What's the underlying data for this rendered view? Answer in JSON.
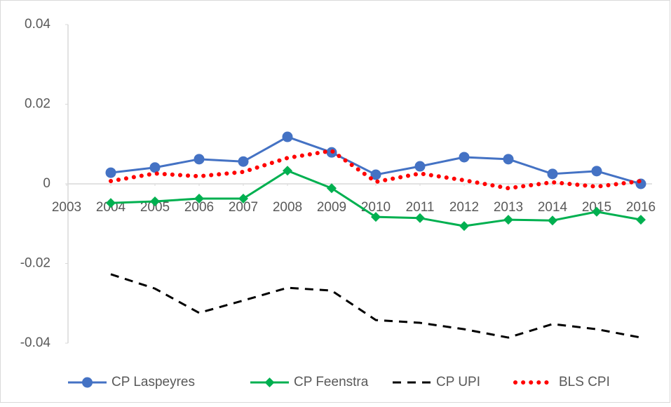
{
  "chart_data": {
    "type": "line",
    "x": [
      2004,
      2005,
      2006,
      2007,
      2008,
      2009,
      2010,
      2011,
      2012,
      2013,
      2014,
      2015,
      2016
    ],
    "xlim": [
      2003,
      2016
    ],
    "xticks": [
      2003,
      2004,
      2005,
      2006,
      2007,
      2008,
      2009,
      2010,
      2011,
      2012,
      2013,
      2014,
      2015,
      2016
    ],
    "ylim": [
      -0.04,
      0.04
    ],
    "yticks": [
      0.04,
      0.02,
      0,
      -0.02,
      -0.04
    ],
    "grid": false,
    "legend": "bottom",
    "series": [
      {
        "name": "CP Laspeyres",
        "color": "#4472c4",
        "marker": "circle",
        "dash": "solid",
        "values": [
          0.0028,
          0.0041,
          0.0062,
          0.0056,
          0.0118,
          0.0079,
          0.0023,
          0.0044,
          0.0067,
          0.0062,
          0.0025,
          0.0032,
          0.0
        ]
      },
      {
        "name": "CP Feenstra",
        "color": "#00b050",
        "marker": "diamond",
        "dash": "solid",
        "values": [
          -0.0048,
          -0.0044,
          -0.0037,
          -0.0037,
          0.0033,
          -0.0011,
          -0.0083,
          -0.0086,
          -0.0106,
          -0.009,
          -0.0092,
          -0.007,
          -0.009
        ]
      },
      {
        "name": "CP UPI",
        "color": "#000000",
        "marker": "none",
        "dash": "dashed",
        "values": [
          -0.0227,
          -0.0263,
          -0.0324,
          -0.0293,
          -0.0261,
          -0.0268,
          -0.0342,
          -0.0349,
          -0.0365,
          -0.0386,
          -0.0352,
          -0.0365,
          -0.0386
        ]
      },
      {
        "name": "BLS CPI",
        "color": "#ff0000",
        "marker": "none",
        "dash": "dotted",
        "values": [
          0.0007,
          0.0026,
          0.0019,
          0.003,
          0.0065,
          0.0083,
          0.0005,
          0.0026,
          0.0009,
          -0.0011,
          0.0004,
          -0.0007,
          0.0007
        ]
      }
    ]
  }
}
